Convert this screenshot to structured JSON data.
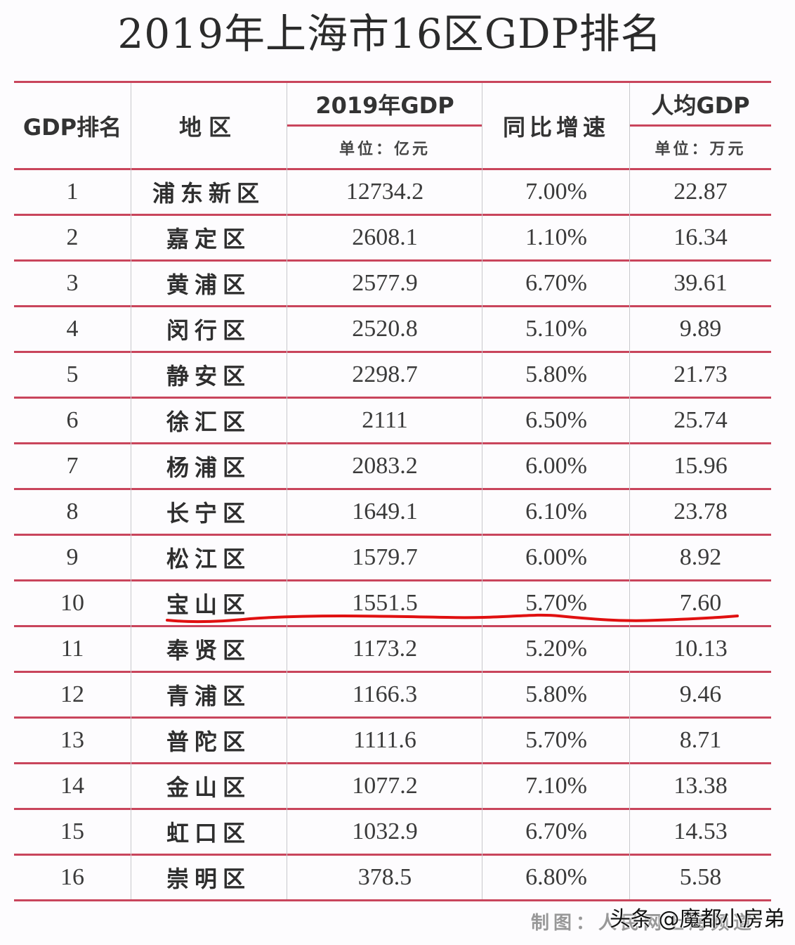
{
  "title": "2019年上海市16区GDP排名",
  "header": {
    "rank": "GDP排名",
    "district": "地区",
    "gdp": "2019年GDP",
    "gdp_unit": "单位：亿元",
    "growth": "同比增速",
    "per_capita": "人均GDP",
    "per_capita_unit": "单位：万元"
  },
  "rows": [
    {
      "rank": "1",
      "district": "浦东新区",
      "gdp": "12734.2",
      "growth": "7.00%",
      "per_capita": "22.87"
    },
    {
      "rank": "2",
      "district": "嘉定区",
      "gdp": "2608.1",
      "growth": "1.10%",
      "per_capita": "16.34"
    },
    {
      "rank": "3",
      "district": "黄浦区",
      "gdp": "2577.9",
      "growth": "6.70%",
      "per_capita": "39.61"
    },
    {
      "rank": "4",
      "district": "闵行区",
      "gdp": "2520.8",
      "growth": "5.10%",
      "per_capita": "9.89"
    },
    {
      "rank": "5",
      "district": "静安区",
      "gdp": "2298.7",
      "growth": "5.80%",
      "per_capita": "21.73"
    },
    {
      "rank": "6",
      "district": "徐汇区",
      "gdp": "2111",
      "growth": "6.50%",
      "per_capita": "25.74"
    },
    {
      "rank": "7",
      "district": "杨浦区",
      "gdp": "2083.2",
      "growth": "6.00%",
      "per_capita": "15.96"
    },
    {
      "rank": "8",
      "district": "长宁区",
      "gdp": "1649.1",
      "growth": "6.10%",
      "per_capita": "23.78"
    },
    {
      "rank": "9",
      "district": "松江区",
      "gdp": "1579.7",
      "growth": "6.00%",
      "per_capita": "8.92"
    },
    {
      "rank": "10",
      "district": "宝山区",
      "gdp": "1551.5",
      "growth": "5.70%",
      "per_capita": "7.60"
    },
    {
      "rank": "11",
      "district": "奉贤区",
      "gdp": "1173.2",
      "growth": "5.20%",
      "per_capita": "10.13"
    },
    {
      "rank": "12",
      "district": "青浦区",
      "gdp": "1166.3",
      "growth": "5.80%",
      "per_capita": "9.46"
    },
    {
      "rank": "13",
      "district": "普陀区",
      "gdp": "1111.6",
      "growth": "5.70%",
      "per_capita": "8.71"
    },
    {
      "rank": "14",
      "district": "金山区",
      "gdp": "1077.2",
      "growth": "7.10%",
      "per_capita": "13.38"
    },
    {
      "rank": "15",
      "district": "虹口区",
      "gdp": "1032.9",
      "growth": "6.70%",
      "per_capita": "14.53"
    },
    {
      "rank": "16",
      "district": "崇明区",
      "gdp": "378.5",
      "growth": "6.80%",
      "per_capita": "5.58"
    }
  ],
  "highlighted_row": "10",
  "footer": "制图：人民网上海频道",
  "watermark": "头条 @魔都小房弟",
  "colors": {
    "rule_line": "#c9455c",
    "highlight_underline": "#e01010",
    "text": "#2a2a2a"
  }
}
